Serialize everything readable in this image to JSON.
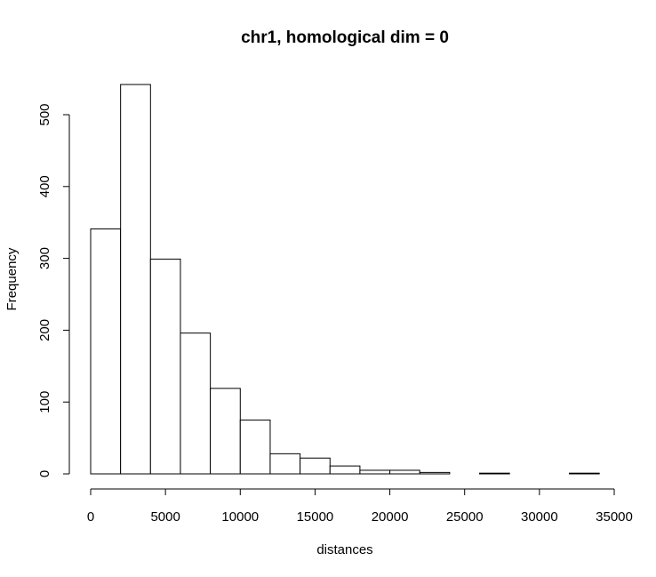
{
  "chart_data": {
    "type": "bar",
    "title": "chr1, homological dim = 0",
    "xlabel": "distances",
    "ylabel": "Frequency",
    "bin_edges": [
      0,
      2000,
      4000,
      6000,
      8000,
      10000,
      12000,
      14000,
      16000,
      18000,
      20000,
      22000,
      24000,
      26000,
      28000,
      30000,
      32000,
      34000
    ],
    "values": [
      341,
      542,
      299,
      196,
      119,
      75,
      28,
      22,
      11,
      5,
      5,
      2,
      0,
      1,
      0,
      0,
      1
    ],
    "xlim": [
      0,
      35000
    ],
    "ylim": [
      0,
      500
    ],
    "x_ticks": [
      0,
      5000,
      10000,
      15000,
      20000,
      25000,
      30000,
      35000
    ],
    "y_ticks": [
      0,
      100,
      200,
      300,
      400,
      500
    ],
    "grid": false,
    "bar_fill": "#ffffff",
    "bar_stroke": "#000000"
  }
}
